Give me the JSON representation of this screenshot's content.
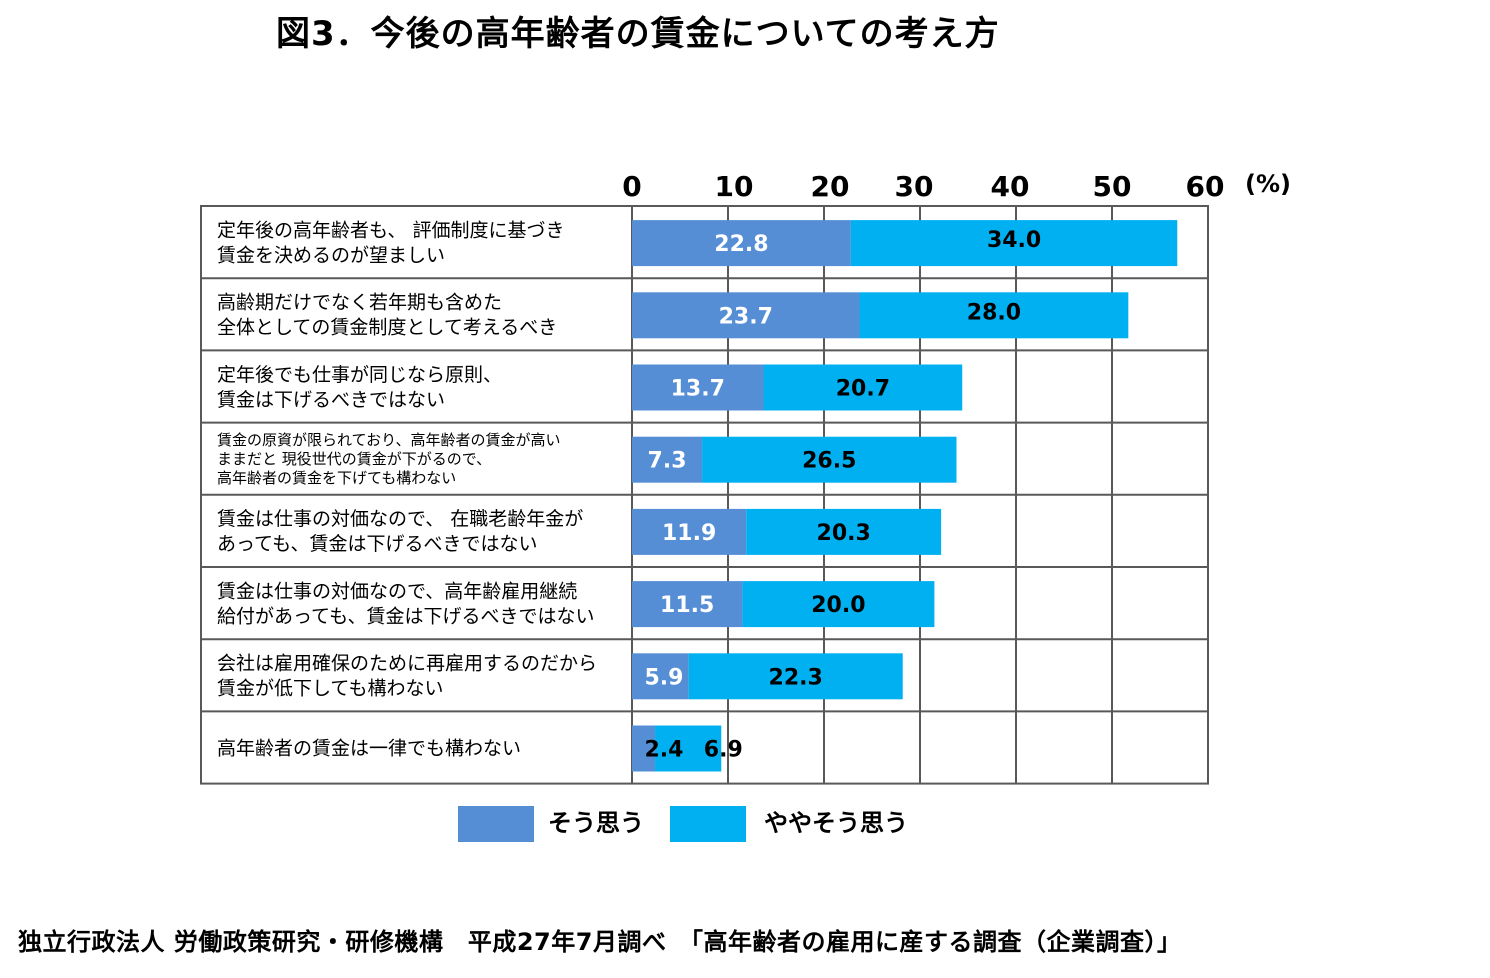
{
  "title": "図3．今後の高年齢者の賃金についての考え方",
  "source": "独立行政法人 労働政策研究・研修機構　平成27年7月調べ　「高年齢者の雇用に産する調査（企業調査）」",
  "colors": {
    "series1": "#558ed5",
    "series2": "#00b0f0",
    "grid": "#595959",
    "text": "#000000"
  },
  "chart_data": {
    "type": "bar",
    "orientation": "horizontal",
    "stacked": true,
    "unit_label": "(%)",
    "xlim": [
      0,
      60
    ],
    "ticks": [
      "0",
      "10",
      "20",
      "30",
      "40",
      "50",
      "60"
    ],
    "grid": true,
    "legend_position": "bottom",
    "categories": [
      [
        "定年後の高年齢者も、 評価制度に基づき",
        "賃金を決めるのが望ましい"
      ],
      [
        "高齢期だけでなく若年期も含めた",
        "全体としての賃金制度として考えるべき"
      ],
      [
        "定年後でも仕事が同じなら原則、",
        "賃金は下げるべきではない"
      ],
      [
        "賃金の原資が限られており、高年齢者の賃金が高い",
        "ままだと 現役世代の賃金が下がるので、",
        "高年齢者の賃金を下げても構わない"
      ],
      [
        "賃金は仕事の対価なので、 在職老齢年金が",
        "あっても、賃金は下げるべきではない"
      ],
      [
        "賃金は仕事の対価なので、高年齢雇用継続",
        "給付があっても、賃金は下げるべきではない"
      ],
      [
        "会社は雇用確保のために再雇用するのだから",
        "賃金が低下しても構わない"
      ],
      [
        "高年齢者の賃金は一律でも構わない"
      ]
    ],
    "series": [
      {
        "name": "そう思う",
        "values": [
          22.8,
          23.7,
          13.7,
          7.3,
          11.9,
          11.5,
          5.9,
          2.4
        ],
        "labels": [
          "22.8",
          "23.7",
          "13.7",
          "7.3",
          "11.9",
          "11.5",
          "5.9",
          "2.4"
        ]
      },
      {
        "name": "ややそう思う",
        "values": [
          34.0,
          28.0,
          20.7,
          26.5,
          20.3,
          20.0,
          22.3,
          6.9
        ],
        "labels": [
          "34.0",
          "28.0",
          "20.7",
          "26.5",
          "20.3",
          "20.0",
          "22.3",
          "6.9"
        ]
      }
    ]
  }
}
